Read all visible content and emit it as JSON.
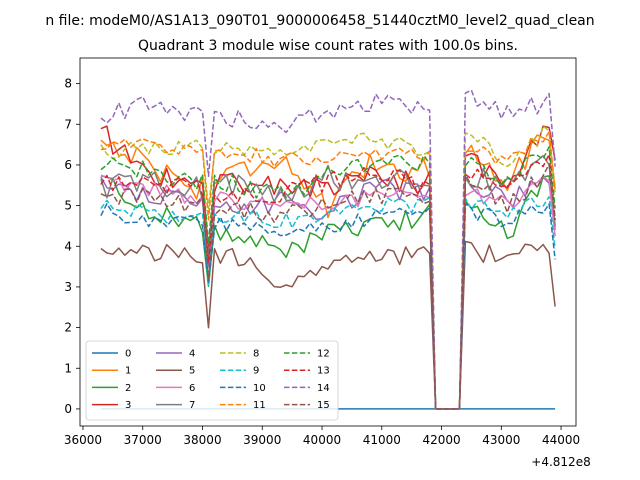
{
  "suptitle": "n file: modeM0/AS1A13_090T01_9000006458_51440cztM0_level2_quad_clean",
  "chart_data": {
    "type": "line",
    "title": "Quadrant 3 module wise count rates with 100.0s bins.",
    "xlabel": "",
    "ylabel": "",
    "x_offset_label": "+4.812e8",
    "xlim": [
      35950,
      44250
    ],
    "ylim": [
      -0.42,
      8.63
    ],
    "xticks": [
      36000,
      37000,
      38000,
      39000,
      40000,
      41000,
      42000,
      43000,
      44000
    ],
    "xtick_labels": [
      "36000",
      "37000",
      "38000",
      "39000",
      "40000",
      "41000",
      "42000",
      "43000",
      "44000"
    ],
    "yticks": [
      0,
      1,
      2,
      3,
      4,
      5,
      6,
      7,
      8
    ],
    "ytick_labels": [
      "0",
      "1",
      "2",
      "3",
      "4",
      "5",
      "6",
      "7",
      "8"
    ],
    "x_start": 36300,
    "x_step": 100,
    "n_points": 77,
    "gap_range": [
      41900,
      42300
    ],
    "legend": {
      "position": "lower-left",
      "columns": 4
    },
    "series": [
      {
        "name": "0",
        "color": "#1f77b4",
        "dash": "solid",
        "levels": [
          0
        ],
        "jitter": 0
      },
      {
        "name": "1",
        "color": "#ff7f0e",
        "dash": "solid",
        "levels": [
          6.6,
          6.1,
          5.4,
          5.9,
          6.2,
          4.9,
          6.1,
          5.8,
          6.5,
          5.6,
          7.1
        ],
        "jitter": 0.3
      },
      {
        "name": "2",
        "color": "#2ca02c",
        "dash": "solid",
        "levels": [
          5.7,
          4.9,
          4.6,
          4.2,
          3.9,
          4.3,
          4.5,
          4.7,
          5.2,
          4.3,
          6.2
        ],
        "jitter": 0.25
      },
      {
        "name": "3",
        "color": "#d62728",
        "dash": "solid",
        "levels": [
          6.8,
          5.8,
          5.5,
          5.6,
          5.5,
          5.4,
          5.8,
          5.5,
          6.2,
          5.5,
          7.4
        ],
        "jitter": 0.3
      },
      {
        "name": "4",
        "color": "#9467bd",
        "dash": "solid",
        "levels": [
          5.6,
          5.3,
          5.0,
          4.9,
          5.1,
          4.8,
          5.5,
          5.3,
          5.6,
          5.1,
          5.8
        ],
        "jitter": 0.25
      },
      {
        "name": "5",
        "color": "#8c564b",
        "dash": "solid",
        "levels": [
          3.8,
          3.9,
          3.7,
          3.7,
          3.1,
          3.5,
          3.8,
          3.8,
          3.9,
          3.7,
          4.0
        ],
        "jitter": 0.25
      },
      {
        "name": "6",
        "color": "#e377c2",
        "dash": "solid",
        "levels": [
          5.6,
          5.4,
          5.2,
          5.1,
          5.0,
          5.1,
          5.2,
          5.2,
          5.4,
          5.0,
          5.8
        ],
        "jitter": 0.2
      },
      {
        "name": "7",
        "color": "#7f7f7f",
        "dash": "solid",
        "levels": [
          5.4,
          5.6,
          5.4,
          5.5,
          5.3,
          5.7,
          5.6,
          5.6,
          5.8,
          5.4,
          6.2
        ],
        "jitter": 0.3
      },
      {
        "name": "8",
        "color": "#bcbd22",
        "dash": "dashed",
        "levels": [
          6.3,
          6.4,
          6.5,
          6.3,
          6.2,
          6.5,
          6.6,
          6.4,
          6.8,
          6.1,
          7.0
        ],
        "jitter": 0.2
      },
      {
        "name": "9",
        "color": "#17becf",
        "dash": "dashed",
        "levels": [
          5.1,
          4.8,
          4.7,
          4.8,
          4.6,
          4.8,
          5.0,
          5.0,
          5.1,
          4.8,
          5.3
        ],
        "jitter": 0.2
      },
      {
        "name": "10",
        "color": "#1f77b4",
        "dash": "dashed",
        "levels": [
          4.9,
          4.6,
          4.7,
          4.5,
          4.3,
          4.5,
          4.7,
          4.8,
          4.9,
          4.6,
          5.1
        ],
        "jitter": 0.2
      },
      {
        "name": "11",
        "color": "#ff7f0e",
        "dash": "dashed",
        "levels": [
          6.5,
          6.5,
          6.4,
          6.3,
          6.1,
          6.2,
          6.3,
          6.2,
          6.5,
          6.1,
          6.9
        ],
        "jitter": 0.2
      },
      {
        "name": "12",
        "color": "#2ca02c",
        "dash": "dashed",
        "levels": [
          6.0,
          5.9,
          5.6,
          5.5,
          5.3,
          5.7,
          6.1,
          6.0,
          6.1,
          5.6,
          6.5
        ],
        "jitter": 0.25
      },
      {
        "name": "13",
        "color": "#d62728",
        "dash": "dashed",
        "levels": [
          5.6,
          5.5,
          5.4,
          5.3,
          5.3,
          5.6,
          5.9,
          5.5,
          5.8,
          5.3,
          6.3
        ],
        "jitter": 0.25
      },
      {
        "name": "14",
        "color": "#9467bd",
        "dash": "dashed",
        "levels": [
          7.2,
          7.5,
          7.3,
          7.1,
          7.0,
          7.3,
          7.5,
          7.4,
          7.7,
          7.2,
          7.7
        ],
        "jitter": 0.25
      },
      {
        "name": "15",
        "color": "#8c564b",
        "dash": "dashed",
        "levels": [
          5.3,
          5.2,
          5.0,
          4.9,
          4.8,
          5.0,
          5.3,
          5.2,
          5.6,
          5.0,
          6.0
        ],
        "jitter": 0.25
      }
    ]
  }
}
